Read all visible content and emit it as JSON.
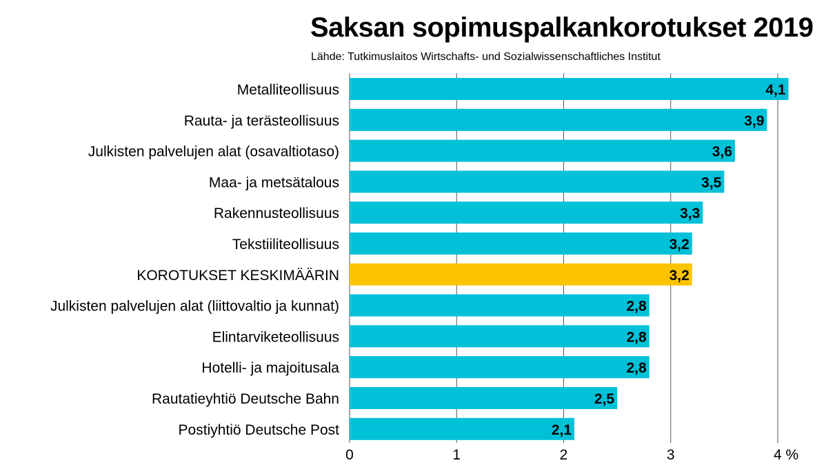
{
  "title": "Saksan sopimuspalkankorotukset 2019",
  "source": "Lähde: Tutkimuslaitos Wirtschafts- und Sozialwissenschaftliches Institut",
  "colors": {
    "bar": "#00c1d8",
    "highlight": "#fcc400",
    "grid": "#555555"
  },
  "chart_data": {
    "type": "bar",
    "orientation": "horizontal",
    "title": "Saksan sopimuspalkankorotukset 2019",
    "subtitle": "Lähde: Tutkimuslaitos Wirtschafts- und Sozialwissenschaftliches Institut",
    "categories": [
      "Metalliteollisuus",
      "Rauta- ja terästeollisuus",
      "Julkisten palvelujen alat (osavaltiotaso)",
      "Maa- ja metsätalous",
      "Rakennusteollisuus",
      "Tekstiiliteollisuus",
      "KOROTUKSET KESKIMÄÄRIN",
      "Julkisten palvelujen alat (liittovaltio ja kunnat)",
      "Elintarviketeollisuus",
      "Hotelli- ja majoitusala",
      "Rautatieyhtiö Deutsche Bahn",
      "Postiyhtiö Deutsche Post"
    ],
    "values": [
      4.1,
      3.9,
      3.6,
      3.5,
      3.3,
      3.2,
      3.2,
      2.8,
      2.8,
      2.8,
      2.5,
      2.1
    ],
    "value_labels": [
      "4,1",
      "3,9",
      "3,6",
      "3,5",
      "3,3",
      "3,2",
      "3,2",
      "2,8",
      "2,8",
      "2,8",
      "2,5",
      "2,1"
    ],
    "highlight_index": 6,
    "xlim": [
      0,
      4
    ],
    "x_ticks": [
      "0",
      "1",
      "2",
      "3",
      "4 %"
    ],
    "grid": true
  }
}
